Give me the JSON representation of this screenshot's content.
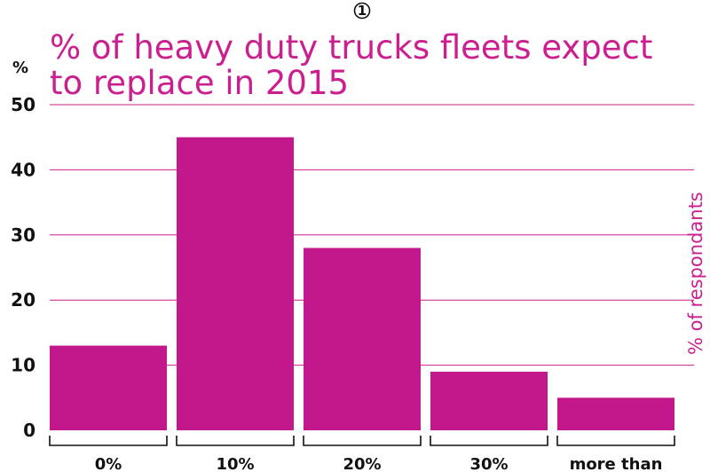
{
  "badge": "1",
  "colors": {
    "bar": "#c2188b",
    "grid": "#cc1f8f",
    "title": "#cc1f8f",
    "text": "#111111"
  },
  "chart_data": {
    "type": "bar",
    "title": "% of heavy duty trucks fleets expect to replace in 2015",
    "title_lines": [
      "% of heavy duty trucks fleets expect",
      "to replace in 2015"
    ],
    "ylabel": "%",
    "side_label": "% of respondants",
    "xlabel": "",
    "categories": [
      "0%",
      "10%",
      "20%",
      "30%",
      "more than"
    ],
    "values": [
      13,
      45,
      28,
      9,
      5
    ],
    "ylim": [
      0,
      50
    ],
    "yticks": [
      0,
      10,
      20,
      30,
      40,
      50
    ],
    "grid": true
  }
}
